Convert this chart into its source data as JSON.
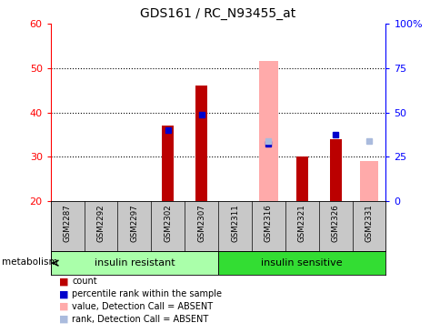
{
  "title": "GDS161 / RC_N93455_at",
  "samples": [
    "GSM2287",
    "GSM2292",
    "GSM2297",
    "GSM2302",
    "GSM2307",
    "GSM2311",
    "GSM2316",
    "GSM2321",
    "GSM2326",
    "GSM2331"
  ],
  "groups": {
    "insulin resistant": [
      0,
      1,
      2,
      3,
      4
    ],
    "insulin sensitive": [
      5,
      6,
      7,
      8,
      9
    ]
  },
  "count_values": [
    null,
    null,
    null,
    37.0,
    46.0,
    null,
    null,
    30.0,
    34.0,
    null
  ],
  "rank_values": [
    null,
    null,
    null,
    36.0,
    39.5,
    null,
    33.0,
    null,
    35.0,
    null
  ],
  "absent_value_values": [
    null,
    null,
    null,
    null,
    null,
    null,
    51.5,
    null,
    null,
    29.0
  ],
  "absent_rank_values": [
    null,
    null,
    null,
    null,
    null,
    null,
    33.5,
    null,
    null,
    33.5
  ],
  "ylim_left": [
    20,
    60
  ],
  "ylim_right": [
    0,
    100
  ],
  "left_ticks": [
    20,
    30,
    40,
    50,
    60
  ],
  "right_ticks": [
    0,
    25,
    50,
    75,
    100
  ],
  "right_tick_labels": [
    "0",
    "25",
    "50",
    "75",
    "100%"
  ],
  "bar_color": "#BB0000",
  "rank_color": "#0000CC",
  "absent_value_color": "#FFAAAA",
  "absent_rank_color": "#AABBDD",
  "bar_width": 0.35,
  "absent_bar_width": 0.55,
  "rank_marker_size": 5,
  "dotted_line_y": [
    30,
    40,
    50
  ],
  "group_colors": {
    "insulin resistant": "#AAFFAA",
    "insulin sensitive": "#33DD33"
  },
  "legend_items": [
    {
      "label": "count",
      "color": "#BB0000"
    },
    {
      "label": "percentile rank within the sample",
      "color": "#0000CC"
    },
    {
      "label": "value, Detection Call = ABSENT",
      "color": "#FFAAAA"
    },
    {
      "label": "rank, Detection Call = ABSENT",
      "color": "#AABBDD"
    }
  ]
}
